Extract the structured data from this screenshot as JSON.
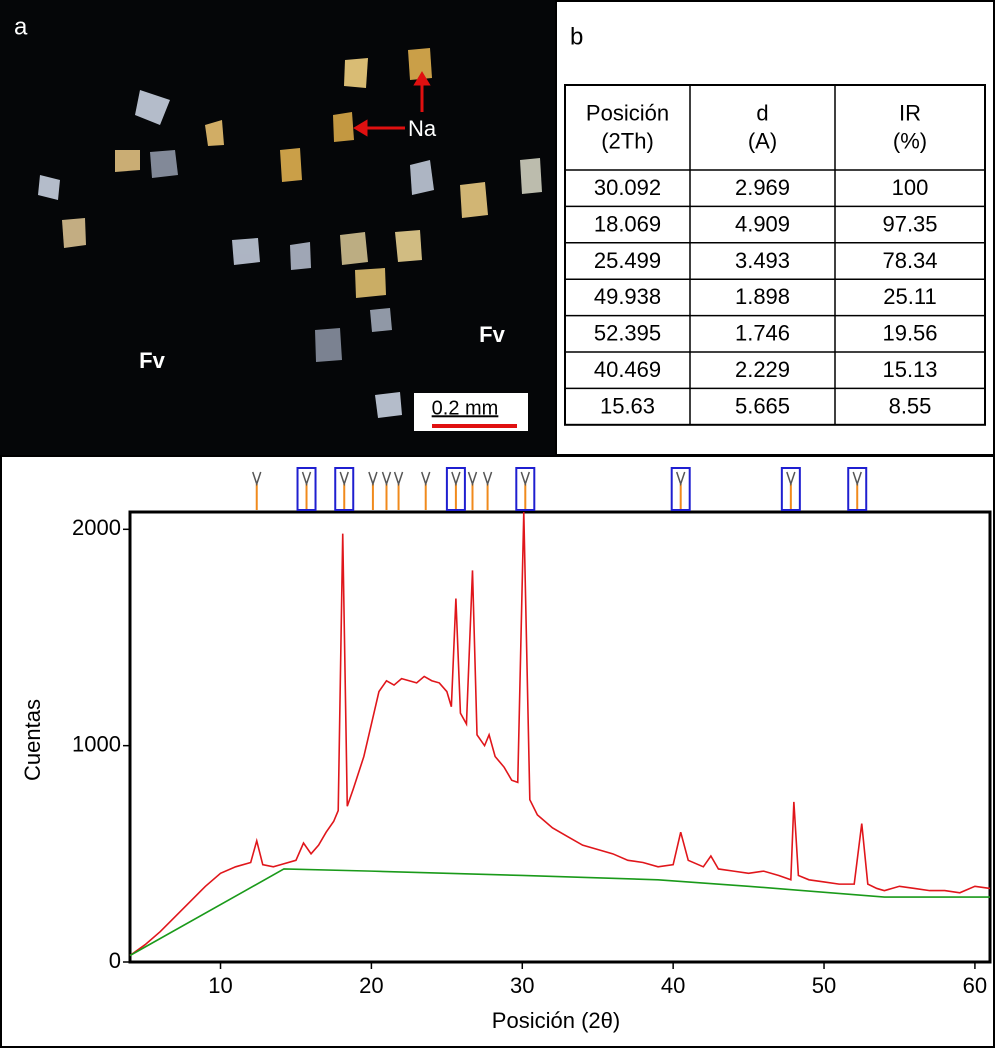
{
  "panel_a": {
    "label": "a",
    "annotations": [
      "Na",
      "Fv",
      "Fv"
    ],
    "scale_bar": "0.2 mm"
  },
  "panel_b": {
    "label": "b",
    "table": {
      "header": [
        "Posición (2Th)",
        "d (A)",
        "IR (%)"
      ],
      "rows": [
        [
          "30.092",
          "2.969",
          "100"
        ],
        [
          "18.069",
          "4.909",
          "97.35"
        ],
        [
          "25.499",
          "3.493",
          "78.34"
        ],
        [
          "49.938",
          "1.898",
          "25.11"
        ],
        [
          "52.395",
          "1.746",
          "19.56"
        ],
        [
          "40.469",
          "2.229",
          "15.13"
        ],
        [
          "15.63",
          "5.665",
          "8.55"
        ]
      ]
    }
  },
  "chart_data": {
    "type": "line",
    "xlabel": "Posición (2θ)",
    "ylabel": "Cuentas",
    "xlim": [
      4,
      61
    ],
    "ylim": [
      0,
      2080
    ],
    "xticks": [
      10,
      20,
      30,
      40,
      50,
      60
    ],
    "yticks": [
      0,
      1000,
      2000
    ],
    "series": [
      {
        "color": "#e0161b",
        "x": [
          4,
          5,
          6,
          7,
          8,
          9,
          10,
          11,
          12,
          12.4,
          12.8,
          13.5,
          14,
          15,
          15.5,
          16,
          16.5,
          17,
          17.5,
          17.8,
          18.1,
          18.4,
          18.8,
          19.5,
          20,
          20.5,
          21,
          21.5,
          22,
          22.5,
          23,
          23.5,
          24,
          24.5,
          25,
          25.3,
          25.6,
          25.9,
          26.3,
          26.7,
          27,
          27.5,
          27.8,
          28.2,
          28.8,
          29.3,
          29.7,
          30.1,
          30.5,
          31,
          32,
          33,
          34,
          35,
          36,
          37,
          38,
          39,
          40,
          40.5,
          41,
          42,
          42.5,
          43,
          44,
          45,
          46,
          47,
          47.8,
          48,
          48.3,
          49,
          50,
          51,
          52,
          52.5,
          52.9,
          53.5,
          54,
          55,
          56,
          57,
          58,
          59,
          60,
          61
        ],
        "values": [
          30,
          80,
          140,
          210,
          280,
          350,
          410,
          440,
          460,
          560,
          450,
          440,
          450,
          470,
          550,
          500,
          540,
          600,
          650,
          700,
          1980,
          720,
          800,
          950,
          1100,
          1250,
          1300,
          1280,
          1310,
          1300,
          1290,
          1320,
          1300,
          1290,
          1250,
          1180,
          1680,
          1150,
          1100,
          1810,
          1050,
          1000,
          1050,
          950,
          900,
          840,
          830,
          2080,
          750,
          680,
          620,
          580,
          540,
          520,
          500,
          470,
          460,
          440,
          450,
          600,
          470,
          440,
          490,
          430,
          420,
          410,
          420,
          400,
          380,
          740,
          400,
          380,
          370,
          360,
          360,
          640,
          360,
          340,
          330,
          350,
          340,
          330,
          330,
          320,
          350,
          340
        ]
      },
      {
        "color": "#1a9a1a",
        "x": [
          4,
          14.2,
          20,
          30,
          39,
          45,
          54,
          61
        ],
        "values": [
          30,
          430,
          420,
          400,
          380,
          350,
          300,
          300
        ]
      }
    ],
    "markers": [
      12.4,
      15.7,
      18.2,
      20.1,
      21.0,
      21.8,
      23.6,
      25.6,
      26.7,
      27.7,
      30.2,
      40.5,
      47.8,
      52.2
    ],
    "boxed_markers": [
      15.7,
      18.2,
      25.6,
      30.2,
      40.5,
      47.8,
      52.2
    ],
    "marker_color": "#f08a1c",
    "box_color": "#1f1fd0"
  }
}
